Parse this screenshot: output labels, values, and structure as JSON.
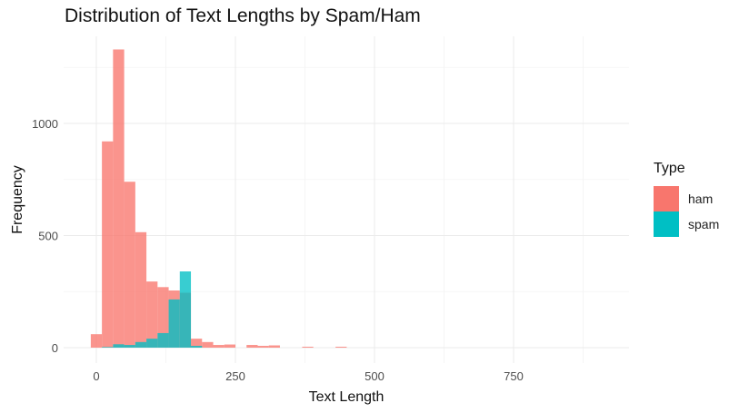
{
  "chart_data": {
    "type": "histogram",
    "title": "Distribution of Text Lengths by Spam/Ham",
    "xlabel": "Text Length",
    "ylabel": "Frequency",
    "xlim": [
      -40,
      930
    ],
    "ylim": [
      -20,
      1395
    ],
    "x_ticks": [
      0,
      250,
      500,
      750
    ],
    "x_tick_labels": [
      "0",
      "250",
      "500",
      "750"
    ],
    "y_ticks": [
      0,
      500,
      1000
    ],
    "y_tick_labels": [
      "0",
      "500",
      "1000"
    ],
    "bin_width": 20,
    "grid": true,
    "legend": {
      "title": "Type",
      "position": "right"
    },
    "series": [
      {
        "name": "ham",
        "color": "#F8766D",
        "bins": [
          {
            "x0": -10,
            "x1": 10,
            "value": 60
          },
          {
            "x0": 10,
            "x1": 30,
            "value": 920
          },
          {
            "x0": 30,
            "x1": 50,
            "value": 1330
          },
          {
            "x0": 50,
            "x1": 70,
            "value": 740
          },
          {
            "x0": 70,
            "x1": 90,
            "value": 515
          },
          {
            "x0": 90,
            "x1": 110,
            "value": 295
          },
          {
            "x0": 110,
            "x1": 130,
            "value": 270
          },
          {
            "x0": 130,
            "x1": 150,
            "value": 255
          },
          {
            "x0": 150,
            "x1": 170,
            "value": 245
          },
          {
            "x0": 170,
            "x1": 190,
            "value": 40
          },
          {
            "x0": 190,
            "x1": 210,
            "value": 25
          },
          {
            "x0": 210,
            "x1": 230,
            "value": 12
          },
          {
            "x0": 230,
            "x1": 250,
            "value": 14
          },
          {
            "x0": 270,
            "x1": 290,
            "value": 12
          },
          {
            "x0": 290,
            "x1": 310,
            "value": 8
          },
          {
            "x0": 310,
            "x1": 330,
            "value": 10
          },
          {
            "x0": 370,
            "x1": 390,
            "value": 4
          },
          {
            "x0": 430,
            "x1": 450,
            "value": 4
          }
        ]
      },
      {
        "name": "spam",
        "color": "#00BFC4",
        "bins": [
          {
            "x0": 10,
            "x1": 30,
            "value": 3
          },
          {
            "x0": 30,
            "x1": 50,
            "value": 15
          },
          {
            "x0": 50,
            "x1": 70,
            "value": 12
          },
          {
            "x0": 70,
            "x1": 90,
            "value": 25
          },
          {
            "x0": 90,
            "x1": 110,
            "value": 40
          },
          {
            "x0": 110,
            "x1": 130,
            "value": 65
          },
          {
            "x0": 130,
            "x1": 150,
            "value": 215
          },
          {
            "x0": 150,
            "x1": 170,
            "value": 340
          },
          {
            "x0": 170,
            "x1": 190,
            "value": 8
          }
        ]
      }
    ]
  }
}
